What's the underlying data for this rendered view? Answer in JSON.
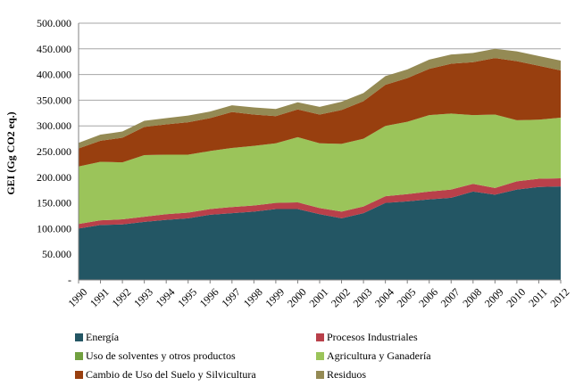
{
  "chart_data": {
    "type": "area",
    "stacked": true,
    "title": "",
    "xlabel": "",
    "ylabel": "GEI (Gg CO2 eq.)",
    "ylim": [
      0,
      500000
    ],
    "yticks": [
      0,
      50000,
      100000,
      150000,
      200000,
      250000,
      300000,
      350000,
      400000,
      450000,
      500000
    ],
    "ytick_labels": [
      "-",
      "50.000",
      "100.000",
      "150.000",
      "200.000",
      "250.000",
      "300.000",
      "350.000",
      "400.000",
      "450.000",
      "500.000"
    ],
    "x": [
      "1990",
      "1991",
      "1992",
      "1993",
      "1994",
      "1995",
      "1996",
      "1997",
      "1998",
      "1999",
      "2000",
      "2001",
      "2002",
      "2003",
      "2004",
      "2005",
      "2006",
      "2007",
      "2008",
      "2009",
      "2010",
      "2011",
      "2012"
    ],
    "grid": true,
    "legend_position": "bottom",
    "series": [
      {
        "name": "Energía",
        "color": "#235664",
        "values": [
          100000,
          107000,
          108000,
          113000,
          117000,
          120000,
          127000,
          130000,
          133000,
          138000,
          138000,
          128000,
          120000,
          130000,
          150000,
          153000,
          157000,
          160000,
          172000,
          166000,
          176000,
          181000,
          182000
        ]
      },
      {
        "name": "Procesos Industriales",
        "color": "#B9404A",
        "values": [
          9000,
          9000,
          10000,
          10000,
          11000,
          11000,
          11000,
          12000,
          12000,
          12000,
          13000,
          12000,
          13000,
          13000,
          13000,
          14000,
          15000,
          16000,
          15000,
          13000,
          16000,
          16000,
          16000
        ]
      },
      {
        "name": "Uso de solventes y otros productos",
        "color": "#71A040",
        "values": [
          0,
          0,
          0,
          0,
          0,
          0,
          0,
          0,
          0,
          0,
          0,
          0,
          0,
          0,
          0,
          0,
          0,
          0,
          0,
          0,
          0,
          0,
          0
        ]
      },
      {
        "name": "Agricultura y Ganadería",
        "color": "#9BC45A",
        "values": [
          112000,
          114000,
          111000,
          120000,
          116000,
          113000,
          113000,
          115000,
          116000,
          116000,
          127000,
          126000,
          132000,
          132000,
          137000,
          141000,
          149000,
          148000,
          134000,
          143000,
          119000,
          115000,
          118000
        ]
      },
      {
        "name": "Cambio de Uso del Suelo y Silvicultura",
        "color": "#983F0F",
        "values": [
          35000,
          41000,
          48000,
          55000,
          59000,
          63000,
          64000,
          70000,
          61000,
          53000,
          54000,
          56000,
          66000,
          73000,
          80000,
          85000,
          90000,
          97000,
          103000,
          110000,
          115000,
          105000,
          92000
        ]
      },
      {
        "name": "Residuos",
        "color": "#948A54",
        "values": [
          11000,
          12000,
          12000,
          12000,
          12000,
          13000,
          13000,
          13000,
          14000,
          14000,
          14000,
          15000,
          16000,
          16000,
          17000,
          17000,
          18000,
          18000,
          18000,
          18000,
          19000,
          19000,
          19000
        ]
      }
    ]
  }
}
